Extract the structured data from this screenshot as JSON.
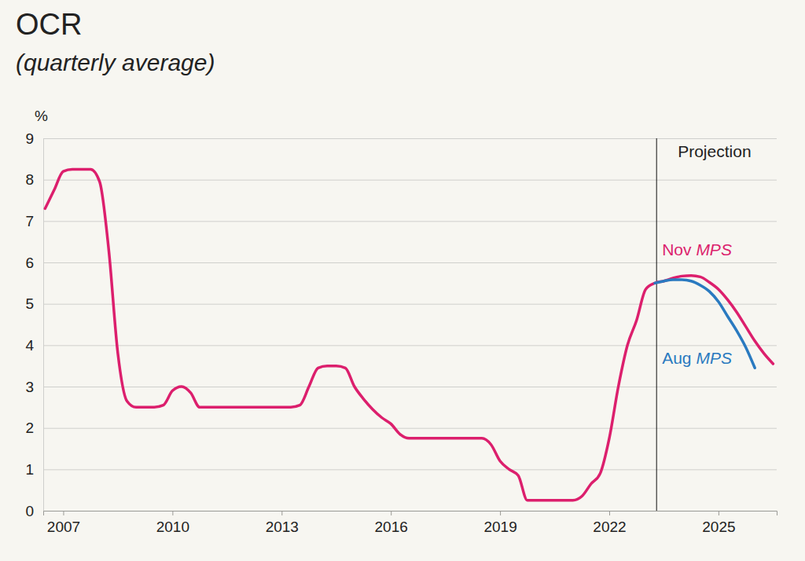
{
  "chart_data": {
    "type": "line",
    "title": "OCR",
    "subtitle": "(quarterly average)",
    "y_label": "%",
    "x": [
      2006.5,
      2006.75,
      2007,
      2007.25,
      2007.5,
      2007.75,
      2008,
      2008.25,
      2008.5,
      2008.75,
      2009,
      2009.25,
      2009.5,
      2009.75,
      2010,
      2010.25,
      2010.5,
      2010.75,
      2011,
      2011.25,
      2011.5,
      2011.75,
      2012,
      2012.25,
      2012.5,
      2012.75,
      2013,
      2013.25,
      2013.5,
      2013.75,
      2014,
      2014.25,
      2014.5,
      2014.75,
      2015,
      2015.25,
      2015.5,
      2015.75,
      2016,
      2016.25,
      2016.5,
      2016.75,
      2017,
      2017.25,
      2017.5,
      2017.75,
      2018,
      2018.25,
      2018.5,
      2018.75,
      2019,
      2019.25,
      2019.5,
      2019.75,
      2020,
      2020.25,
      2020.5,
      2020.75,
      2021,
      2021.25,
      2021.5,
      2021.75,
      2022,
      2022.25,
      2022.5,
      2022.75,
      2023,
      2023.25,
      2023.5,
      2023.75,
      2024,
      2024.25,
      2024.5,
      2024.75,
      2025,
      2025.25,
      2025.5,
      2025.75,
      2026,
      2026.25,
      2026.5
    ],
    "series": [
      {
        "name": "Nov MPS",
        "color": "#dc1f6d",
        "values": [
          7.3,
          7.75,
          8.2,
          8.25,
          8.25,
          8.25,
          7.95,
          6.3,
          3.8,
          2.65,
          2.5,
          2.5,
          2.5,
          2.55,
          2.9,
          3.0,
          2.85,
          2.5,
          2.5,
          2.5,
          2.5,
          2.5,
          2.5,
          2.5,
          2.5,
          2.5,
          2.5,
          2.5,
          2.55,
          3.0,
          3.45,
          3.5,
          3.5,
          3.45,
          3.0,
          2.7,
          2.45,
          2.25,
          2.1,
          1.85,
          1.75,
          1.75,
          1.75,
          1.75,
          1.75,
          1.75,
          1.75,
          1.75,
          1.75,
          1.6,
          1.2,
          1.0,
          0.85,
          0.25,
          0.25,
          0.25,
          0.25,
          0.25,
          0.25,
          0.35,
          0.65,
          0.9,
          1.75,
          3.0,
          4.0,
          4.6,
          5.35,
          5.5,
          5.55,
          5.62,
          5.67,
          5.68,
          5.65,
          5.52,
          5.35,
          5.1,
          4.8,
          4.45,
          4.1,
          3.8,
          3.55
        ]
      },
      {
        "name": "Aug MPS",
        "color": "#2a7ac0",
        "values": [
          null,
          null,
          null,
          null,
          null,
          null,
          null,
          null,
          null,
          null,
          null,
          null,
          null,
          null,
          null,
          null,
          null,
          null,
          null,
          null,
          null,
          null,
          null,
          null,
          null,
          null,
          null,
          null,
          null,
          null,
          null,
          null,
          null,
          null,
          null,
          null,
          null,
          null,
          null,
          null,
          null,
          null,
          null,
          null,
          null,
          null,
          null,
          null,
          null,
          null,
          null,
          null,
          null,
          null,
          null,
          null,
          null,
          null,
          null,
          null,
          null,
          null,
          null,
          null,
          null,
          null,
          null,
          5.5,
          5.55,
          5.58,
          5.58,
          5.55,
          5.45,
          5.3,
          5.05,
          4.7,
          4.35,
          3.95,
          3.45,
          null,
          null
        ]
      }
    ],
    "xlim": [
      2006.45,
      2026.6
    ],
    "xticks": [
      2007,
      2010,
      2013,
      2016,
      2019,
      2022,
      2025
    ],
    "ylim": [
      0,
      9
    ],
    "yticks": [
      0,
      1,
      2,
      3,
      4,
      5,
      6,
      7,
      8,
      9
    ],
    "grid": true,
    "annotations": [
      {
        "text": "Projection",
        "x": 2023.3
      }
    ]
  }
}
